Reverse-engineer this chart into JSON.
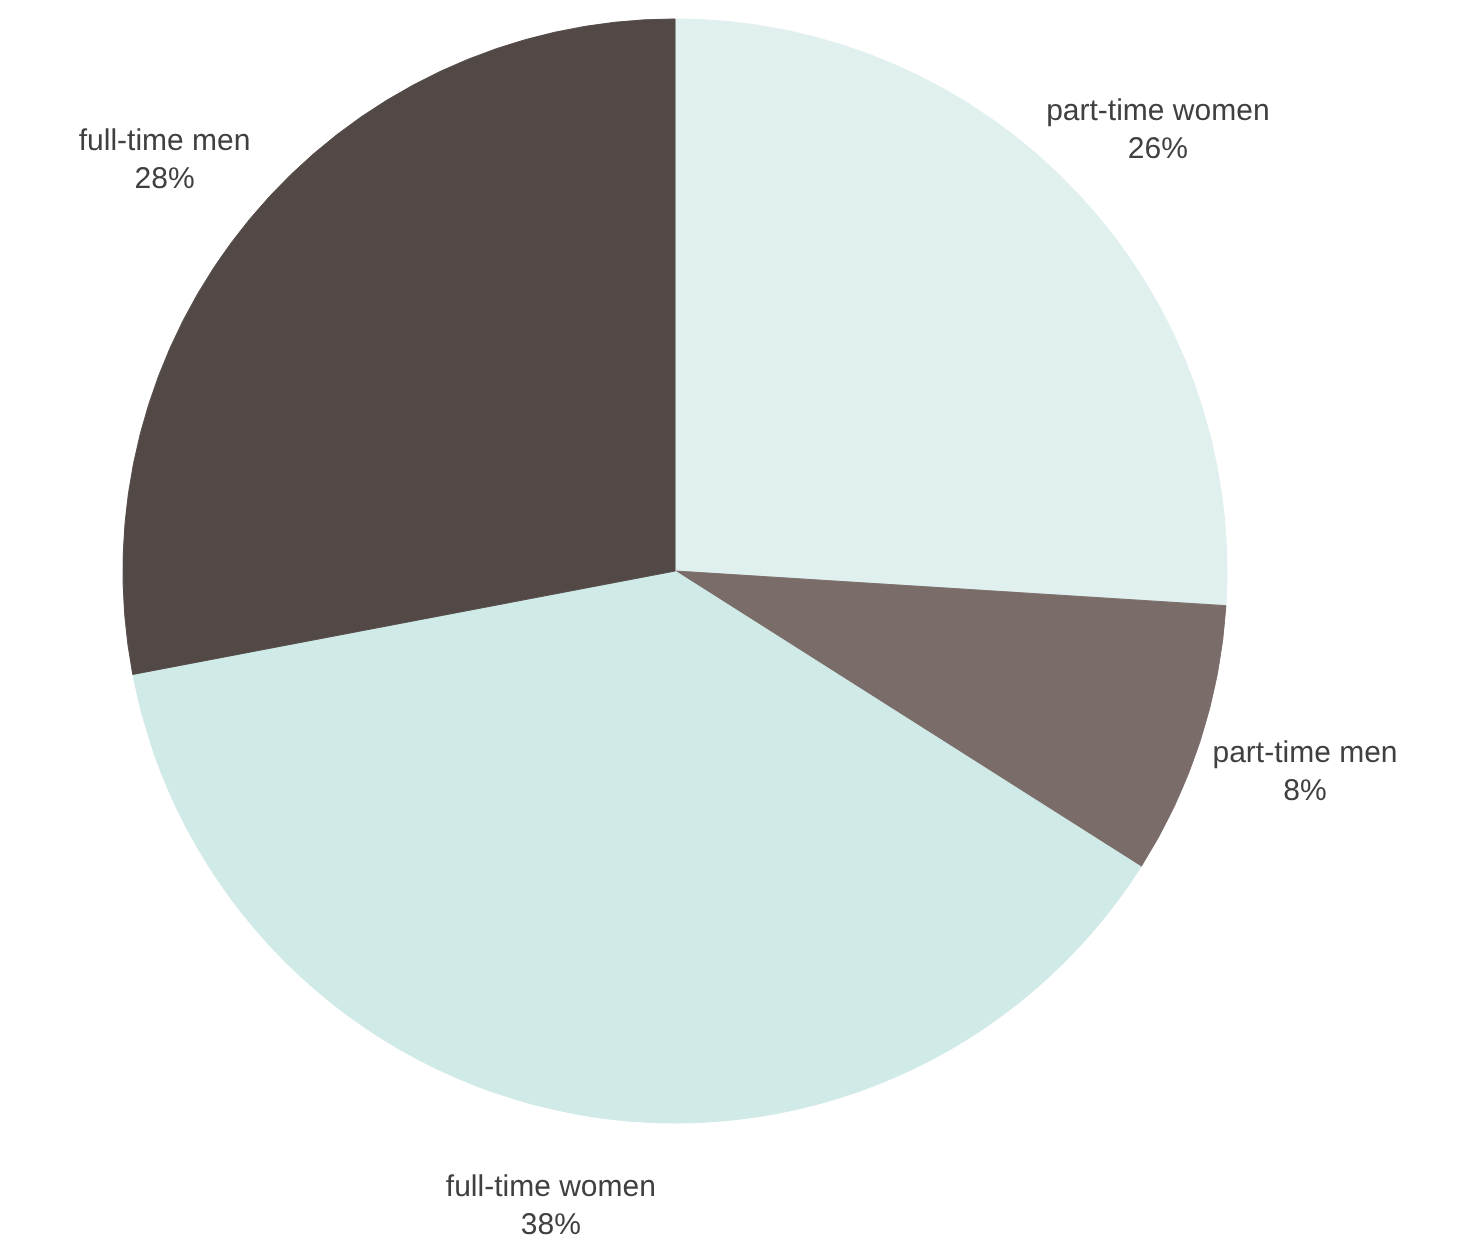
{
  "chart_data": {
    "type": "pie",
    "categories": [
      "part-time women",
      "part-time men",
      "full-time women",
      "full-time men"
    ],
    "values": [
      26,
      8,
      38,
      28
    ],
    "colors": [
      "#e0f0ee",
      "#7a6c69",
      "#d0eae7",
      "#524947"
    ],
    "value_labels": [
      "26%",
      "8%",
      "38%",
      "28%"
    ]
  }
}
